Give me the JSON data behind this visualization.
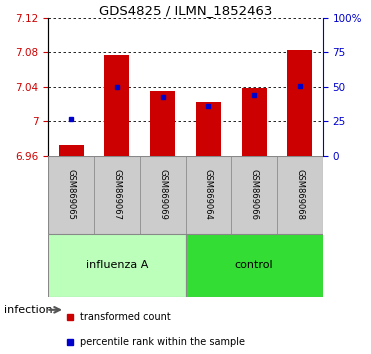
{
  "title": "GDS4825 / ILMN_1852463",
  "categories": [
    "GSM869065",
    "GSM869067",
    "GSM869069",
    "GSM869064",
    "GSM869066",
    "GSM869068"
  ],
  "group_labels": [
    "influenza A",
    "control"
  ],
  "infection_label": "infection",
  "red_values": [
    6.972,
    7.077,
    7.035,
    7.022,
    7.038,
    7.082
  ],
  "blue_values": [
    7.003,
    7.04,
    7.028,
    7.018,
    7.03,
    7.041
  ],
  "bar_bottom": 6.96,
  "ylim_left": [
    6.96,
    7.12
  ],
  "yticks_left": [
    6.96,
    7.0,
    7.04,
    7.08,
    7.12
  ],
  "ytick_labels_left": [
    "6.96",
    "7",
    "7.04",
    "7.08",
    "7.12"
  ],
  "ylim_right": [
    0,
    100
  ],
  "yticks_right": [
    0,
    25,
    50,
    75,
    100
  ],
  "ytick_labels_right": [
    "0",
    "25",
    "50",
    "75",
    "100%"
  ],
  "red_color": "#cc0000",
  "blue_color": "#0000cc",
  "bar_width": 0.55,
  "legend_red": "transformed count",
  "legend_blue": "percentile rank within the sample",
  "xticklabel_color": "#cccccc",
  "group_color_influenza": "#bbffbb",
  "group_color_control": "#33dd33",
  "group_border_color": "#888888"
}
